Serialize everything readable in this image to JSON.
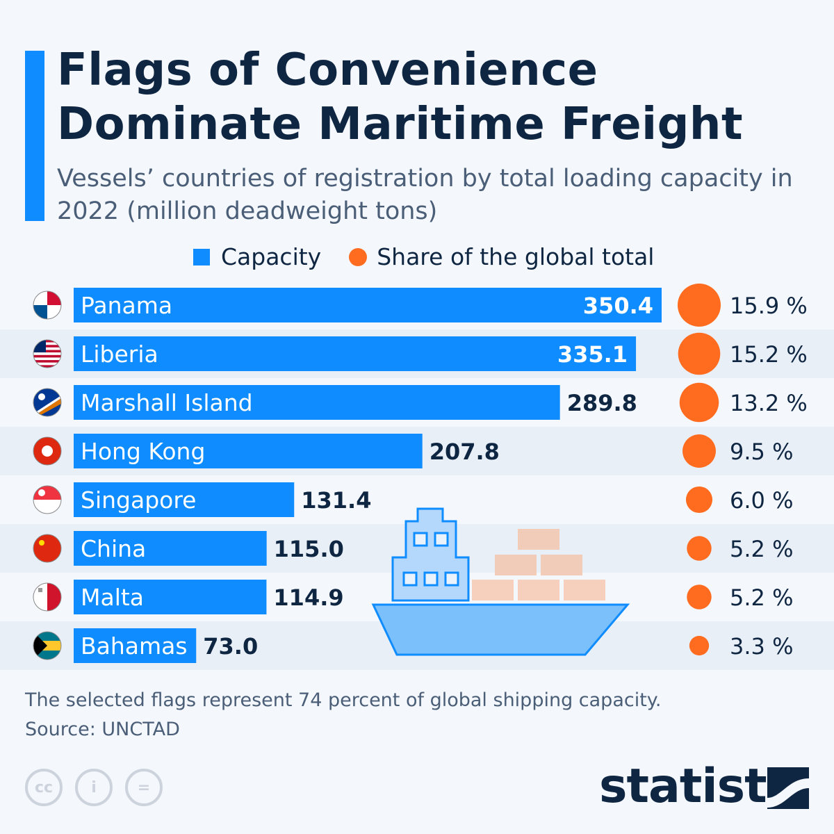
{
  "title_line1": "Flags of Convenience",
  "title_line2": "Dominate Maritime Freight",
  "subtitle": "Vessels’ countries of registration by total loading capacity in 2022 (million deadweight tons)",
  "footer": {
    "note": "The selected flags represent 74 percent of global shipping capacity.",
    "source": "Source: UNCTAD",
    "logo": "statista"
  },
  "colors": {
    "bar": "#0f8cff",
    "share": "#ff6b1f",
    "text": "#0f2642"
  },
  "icons": [
    "cc-icon",
    "attribution-icon",
    "no-derivatives-icon",
    "ship-illustration",
    "flag-icons"
  ],
  "chart_data": {
    "type": "bar",
    "orientation": "horizontal",
    "legend": [
      "Capacity",
      "Share of the global total"
    ],
    "legend_placement": "top",
    "grid": false,
    "categories": [
      "Panama",
      "Liberia",
      "Marshall Island",
      "Hong Kong",
      "Singapore",
      "China",
      "Malta",
      "Bahamas"
    ],
    "series": [
      {
        "name": "Capacity",
        "values": [
          350.4,
          335.1,
          289.8,
          207.8,
          131.4,
          115.0,
          114.9,
          73.0
        ],
        "labels": [
          "350.4",
          "335.1",
          "289.8",
          "207.8",
          "131.4",
          "115.0",
          "114.9",
          "73.0"
        ]
      },
      {
        "name": "Share of the global total",
        "values": [
          15.9,
          15.2,
          13.2,
          9.5,
          6.0,
          5.2,
          5.2,
          3.3
        ],
        "labels": [
          "15.9 %",
          "15.2 %",
          "13.2 %",
          "9.5 %",
          "6.0 %",
          "5.2 %",
          "5.2 %",
          "3.3 %"
        ]
      }
    ]
  }
}
